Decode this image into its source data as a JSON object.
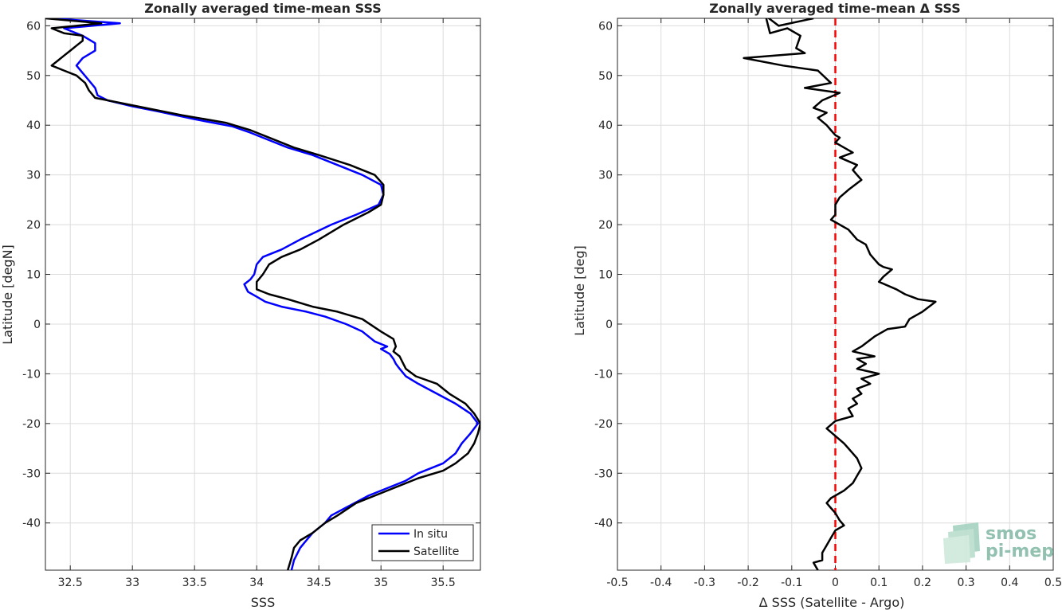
{
  "chart_data": [
    {
      "type": "line",
      "title": "Zonally averaged time-mean SSS",
      "xlabel": "SSS",
      "ylabel": "Latitude [degN]",
      "xlim": [
        32.3,
        35.8
      ],
      "ylim": [
        -49.5,
        61.5
      ],
      "xticks": [
        32.5,
        33,
        33.5,
        34,
        34.5,
        35,
        35.5
      ],
      "xtick_labels": [
        "32.5",
        "33",
        "33.5",
        "34",
        "34.5",
        "35",
        "35.5"
      ],
      "yticks": [
        -40,
        -30,
        -20,
        -10,
        0,
        10,
        20,
        30,
        40,
        50,
        60
      ],
      "ytick_labels": [
        "-40",
        "-30",
        "-20",
        "-10",
        "0",
        "10",
        "20",
        "30",
        "40",
        "50",
        "60"
      ],
      "grid": true,
      "legend": "bottom-right",
      "series": [
        {
          "name": "In situ",
          "color": "#0000ff",
          "points": [
            [
              32.35,
              61.5
            ],
            [
              32.9,
              60.5
            ],
            [
              32.45,
              59.5
            ],
            [
              32.6,
              58
            ],
            [
              32.7,
              56.5
            ],
            [
              32.7,
              55
            ],
            [
              32.6,
              53.5
            ],
            [
              32.55,
              52
            ],
            [
              32.6,
              50.5
            ],
            [
              32.65,
              49
            ],
            [
              32.7,
              47.5
            ],
            [
              32.72,
              46
            ],
            [
              32.8,
              45
            ],
            [
              33.0,
              43.8
            ],
            [
              33.2,
              42.8
            ],
            [
              33.5,
              41.2
            ],
            [
              33.8,
              39.8
            ],
            [
              33.95,
              38.5
            ],
            [
              34.1,
              37
            ],
            [
              34.25,
              35.5
            ],
            [
              34.45,
              34
            ],
            [
              34.65,
              32
            ],
            [
              34.85,
              30
            ],
            [
              35.0,
              28
            ],
            [
              35.02,
              26
            ],
            [
              34.98,
              24
            ],
            [
              34.8,
              22
            ],
            [
              34.6,
              20
            ],
            [
              34.35,
              17
            ],
            [
              34.2,
              15
            ],
            [
              34.05,
              13.5
            ],
            [
              34.0,
              12
            ],
            [
              33.98,
              10
            ],
            [
              33.95,
              9
            ],
            [
              33.9,
              8
            ],
            [
              33.93,
              6.5
            ],
            [
              34.0,
              5.5
            ],
            [
              34.07,
              4.5
            ],
            [
              34.2,
              3.5
            ],
            [
              34.4,
              2.5
            ],
            [
              34.55,
              1.5
            ],
            [
              34.72,
              0
            ],
            [
              34.85,
              -1.5
            ],
            [
              34.95,
              -3.5
            ],
            [
              35.05,
              -4.5
            ],
            [
              35.0,
              -5
            ],
            [
              35.07,
              -6
            ],
            [
              35.1,
              -7
            ],
            [
              35.12,
              -8
            ],
            [
              35.15,
              -9
            ],
            [
              35.2,
              -10.5
            ],
            [
              35.3,
              -12
            ],
            [
              35.45,
              -14
            ],
            [
              35.6,
              -16
            ],
            [
              35.72,
              -18
            ],
            [
              35.78,
              -20
            ],
            [
              35.72,
              -22
            ],
            [
              35.65,
              -24
            ],
            [
              35.6,
              -26
            ],
            [
              35.5,
              -28
            ],
            [
              35.3,
              -30
            ],
            [
              35.2,
              -31.5
            ],
            [
              35.05,
              -33
            ],
            [
              34.9,
              -34.5
            ],
            [
              34.75,
              -36.5
            ],
            [
              34.6,
              -38.5
            ],
            [
              34.55,
              -40
            ],
            [
              34.45,
              -42
            ],
            [
              34.4,
              -43.5
            ],
            [
              34.35,
              -45
            ],
            [
              34.3,
              -47.5
            ],
            [
              34.28,
              -49.5
            ]
          ]
        },
        {
          "name": "Satellite",
          "color": "#000000",
          "points": [
            [
              32.3,
              61.5
            ],
            [
              32.75,
              60.5
            ],
            [
              32.35,
              59.5
            ],
            [
              32.45,
              58.5
            ],
            [
              32.6,
              58
            ],
            [
              32.6,
              57
            ],
            [
              32.55,
              56
            ],
            [
              32.5,
              55
            ],
            [
              32.45,
              54
            ],
            [
              32.4,
              53
            ],
            [
              32.35,
              52
            ],
            [
              32.45,
              51
            ],
            [
              32.55,
              50
            ],
            [
              32.62,
              48.5
            ],
            [
              32.65,
              47
            ],
            [
              32.7,
              45.5
            ],
            [
              32.9,
              44.5
            ],
            [
              33.1,
              43.5
            ],
            [
              33.4,
              42
            ],
            [
              33.75,
              40.5
            ],
            [
              33.95,
              39
            ],
            [
              34.1,
              37.5
            ],
            [
              34.3,
              35.5
            ],
            [
              34.5,
              34
            ],
            [
              34.75,
              32
            ],
            [
              34.95,
              30
            ],
            [
              35.02,
              28
            ],
            [
              35.02,
              26
            ],
            [
              35.0,
              24
            ],
            [
              34.9,
              22.5
            ],
            [
              34.7,
              20
            ],
            [
              34.5,
              17
            ],
            [
              34.35,
              15
            ],
            [
              34.2,
              13.5
            ],
            [
              34.1,
              12
            ],
            [
              34.05,
              10
            ],
            [
              34.0,
              8.5
            ],
            [
              34.0,
              7
            ],
            [
              34.1,
              6
            ],
            [
              34.25,
              5
            ],
            [
              34.45,
              3.5
            ],
            [
              34.65,
              2.5
            ],
            [
              34.85,
              1
            ],
            [
              35.0,
              -1.5
            ],
            [
              35.1,
              -3
            ],
            [
              35.12,
              -4.5
            ],
            [
              35.1,
              -5.5
            ],
            [
              35.15,
              -6.5
            ],
            [
              35.18,
              -8
            ],
            [
              35.2,
              -9
            ],
            [
              35.28,
              -10.5
            ],
            [
              35.45,
              -12
            ],
            [
              35.55,
              -14
            ],
            [
              35.68,
              -16
            ],
            [
              35.75,
              -18
            ],
            [
              35.8,
              -20
            ],
            [
              35.78,
              -22
            ],
            [
              35.75,
              -24
            ],
            [
              35.7,
              -26
            ],
            [
              35.6,
              -28
            ],
            [
              35.5,
              -29.5
            ],
            [
              35.3,
              -31
            ],
            [
              35.1,
              -33
            ],
            [
              34.95,
              -34.5
            ],
            [
              34.8,
              -36
            ],
            [
              34.65,
              -38.5
            ],
            [
              34.55,
              -40
            ],
            [
              34.45,
              -42
            ],
            [
              34.35,
              -43.5
            ],
            [
              34.3,
              -45
            ],
            [
              34.28,
              -47
            ],
            [
              34.25,
              -49.5
            ]
          ]
        }
      ]
    },
    {
      "type": "line",
      "title": "Zonally averaged time-mean Δ SSS",
      "xlabel": "Δ SSS (Satellite - Argo)",
      "ylabel": "Latitude [deg]",
      "xlim": [
        -0.5,
        0.5
      ],
      "ylim": [
        -49.5,
        61.5
      ],
      "xticks": [
        -0.5,
        -0.4,
        -0.3,
        -0.2,
        -0.1,
        0,
        0.1,
        0.2,
        0.3,
        0.4,
        0.5
      ],
      "xtick_labels": [
        "-0.5",
        "-0.4",
        "-0.3",
        "-0.2",
        "-0.1",
        "0",
        "0.1",
        "0.2",
        "0.3",
        "0.4",
        "0.5"
      ],
      "yticks": [
        -40,
        -30,
        -20,
        -10,
        0,
        10,
        20,
        30,
        40,
        50,
        60
      ],
      "ytick_labels": [
        "-40",
        "-30",
        "-20",
        "-10",
        "0",
        "10",
        "20",
        "30",
        "40",
        "50",
        "60"
      ],
      "grid": true,
      "reference_line": {
        "x": 0,
        "color": "#ff0000",
        "style": "dashed"
      },
      "series": [
        {
          "color": "#000000",
          "points": [
            [
              -0.05,
              61.5
            ],
            [
              -0.13,
              60
            ],
            [
              -0.16,
              62
            ],
            [
              -0.15,
              58.5
            ],
            [
              -0.11,
              59.5
            ],
            [
              -0.08,
              58
            ],
            [
              -0.09,
              55.5
            ],
            [
              -0.07,
              54.5
            ],
            [
              -0.21,
              53.5
            ],
            [
              -0.12,
              52
            ],
            [
              -0.04,
              51
            ],
            [
              -0.01,
              48.5
            ],
            [
              -0.07,
              47.5
            ],
            [
              0.01,
              46.5
            ],
            [
              -0.03,
              45
            ],
            [
              -0.05,
              43.5
            ],
            [
              -0.02,
              42.5
            ],
            [
              -0.04,
              41.5
            ],
            [
              -0.02,
              40
            ],
            [
              -0.01,
              39
            ],
            [
              0.0,
              38
            ],
            [
              0.01,
              37.5
            ],
            [
              0.0,
              36.5
            ],
            [
              0.02,
              35.5
            ],
            [
              0.04,
              34.5
            ],
            [
              0.01,
              33.5
            ],
            [
              0.05,
              32
            ],
            [
              0.04,
              31
            ],
            [
              0.05,
              30
            ],
            [
              0.06,
              29
            ],
            [
              0.03,
              27
            ],
            [
              0.01,
              25.5
            ],
            [
              0.0,
              24
            ],
            [
              0.0,
              22
            ],
            [
              -0.01,
              21
            ],
            [
              0.0,
              20.5
            ],
            [
              0.03,
              19
            ],
            [
              0.05,
              17
            ],
            [
              0.07,
              16
            ],
            [
              0.08,
              14
            ],
            [
              0.09,
              13
            ],
            [
              0.1,
              12
            ],
            [
              0.11,
              11.5
            ],
            [
              0.13,
              11
            ],
            [
              0.11,
              9.5
            ],
            [
              0.1,
              8.5
            ],
            [
              0.14,
              7
            ],
            [
              0.16,
              6
            ],
            [
              0.19,
              5
            ],
            [
              0.23,
              4.5
            ],
            [
              0.2,
              2.5
            ],
            [
              0.17,
              1
            ],
            [
              0.16,
              -0.5
            ],
            [
              0.12,
              -1
            ],
            [
              0.09,
              -2.5
            ],
            [
              0.06,
              -4.5
            ],
            [
              0.04,
              -5.5
            ],
            [
              0.09,
              -6.5
            ],
            [
              0.05,
              -7
            ],
            [
              0.07,
              -8
            ],
            [
              0.05,
              -9
            ],
            [
              0.1,
              -10
            ],
            [
              0.06,
              -11
            ],
            [
              0.08,
              -12
            ],
            [
              0.05,
              -13
            ],
            [
              0.06,
              -14
            ],
            [
              0.04,
              -15
            ],
            [
              0.05,
              -16
            ],
            [
              0.03,
              -17
            ],
            [
              0.04,
              -18.5
            ],
            [
              0.0,
              -19.5
            ],
            [
              -0.02,
              -21
            ],
            [
              0.0,
              -22.5
            ],
            [
              0.02,
              -24
            ],
            [
              0.03,
              -25
            ],
            [
              0.04,
              -26
            ],
            [
              0.05,
              -27
            ],
            [
              0.06,
              -29
            ],
            [
              0.05,
              -30.5
            ],
            [
              0.04,
              -32
            ],
            [
              0.02,
              -33.5
            ],
            [
              -0.01,
              -35
            ],
            [
              -0.02,
              -36
            ],
            [
              -0.01,
              -37
            ],
            [
              0.0,
              -38
            ],
            [
              0.01,
              -39.5
            ],
            [
              0.02,
              -40.5
            ],
            [
              0.0,
              -41.5
            ],
            [
              -0.01,
              -43
            ],
            [
              -0.02,
              -44.5
            ],
            [
              -0.03,
              -46
            ],
            [
              -0.03,
              -47.5
            ],
            [
              -0.05,
              -48
            ],
            [
              -0.04,
              -49.5
            ]
          ]
        }
      ]
    }
  ],
  "legend": {
    "items": [
      "In situ",
      "Satellite"
    ]
  },
  "logo": {
    "line1": "smos",
    "line2": "pi-mep"
  }
}
